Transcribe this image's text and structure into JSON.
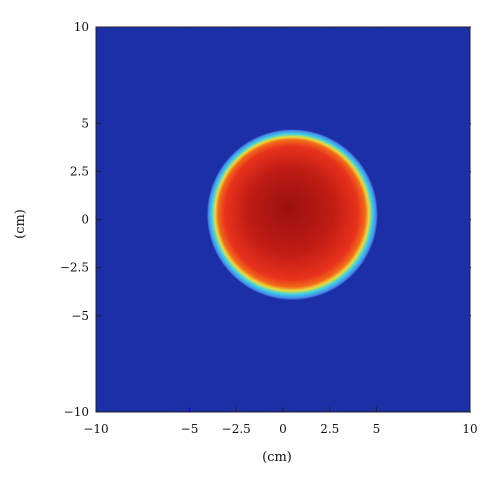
{
  "chart_data": {
    "type": "heatmap",
    "title": "",
    "xlabel": "(cm)",
    "ylabel": "(cm)",
    "xlim": [
      -10,
      10
    ],
    "ylim": [
      -10,
      10
    ],
    "xticks": [
      -10,
      -5,
      -2.5,
      0,
      2.5,
      5,
      10
    ],
    "xtick_labels": [
      "−10",
      "−5",
      "−2.5",
      "0",
      "2.5",
      "5",
      "10"
    ],
    "yticks": [
      10,
      5,
      2.5,
      0,
      -2.5,
      -5,
      -10
    ],
    "ytick_labels": [
      "10",
      "5",
      "2.5",
      "0",
      "−2.5",
      "−5",
      "−10"
    ],
    "grid": false,
    "colormap": "jet",
    "colors": {
      "background": "#1c2fa6",
      "ring_cyan": "#39d0ea",
      "ring_yellow": "#e9dc3a",
      "core_red": "#e8321c",
      "center_dark_red": "#9a1010"
    },
    "region": {
      "shape": "disk",
      "center": [
        0.5,
        0.25
      ],
      "radius": 4.4
    }
  }
}
